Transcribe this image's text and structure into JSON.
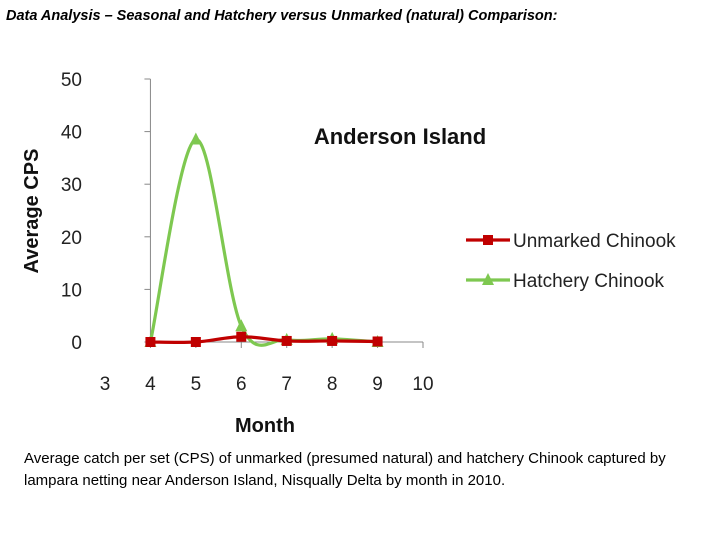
{
  "page": {
    "heading": "Data Analysis – Seasonal and Hatchery versus Unmarked (natural) Comparison:",
    "caption": "Average catch per set (CPS) of unmarked (presumed natural) and hatchery Chinook captured by lampara netting near Anderson Island, Nisqually Delta by month in 2010."
  },
  "chart_data": {
    "type": "line",
    "title": "Anderson Island",
    "xlabel": "Month",
    "ylabel": "Average CPS",
    "xlim": [
      3,
      10
    ],
    "ylim": [
      0,
      50
    ],
    "xticks": [
      3,
      4,
      5,
      6,
      7,
      8,
      9,
      10
    ],
    "yticks": [
      0,
      10,
      20,
      30,
      40,
      50
    ],
    "grid": false,
    "legend": "right",
    "x": [
      4,
      5,
      6,
      7,
      8,
      9
    ],
    "series": [
      {
        "name": "Unmarked Chinook",
        "values": [
          0,
          0,
          1,
          0.2,
          0.2,
          0.1
        ],
        "color": "#c00000",
        "marker": "square"
      },
      {
        "name": "Hatchery Chinook",
        "values": [
          0,
          38.5,
          3,
          0.4,
          0.6,
          0
        ],
        "color": "#7ec850",
        "marker": "triangle"
      }
    ]
  }
}
